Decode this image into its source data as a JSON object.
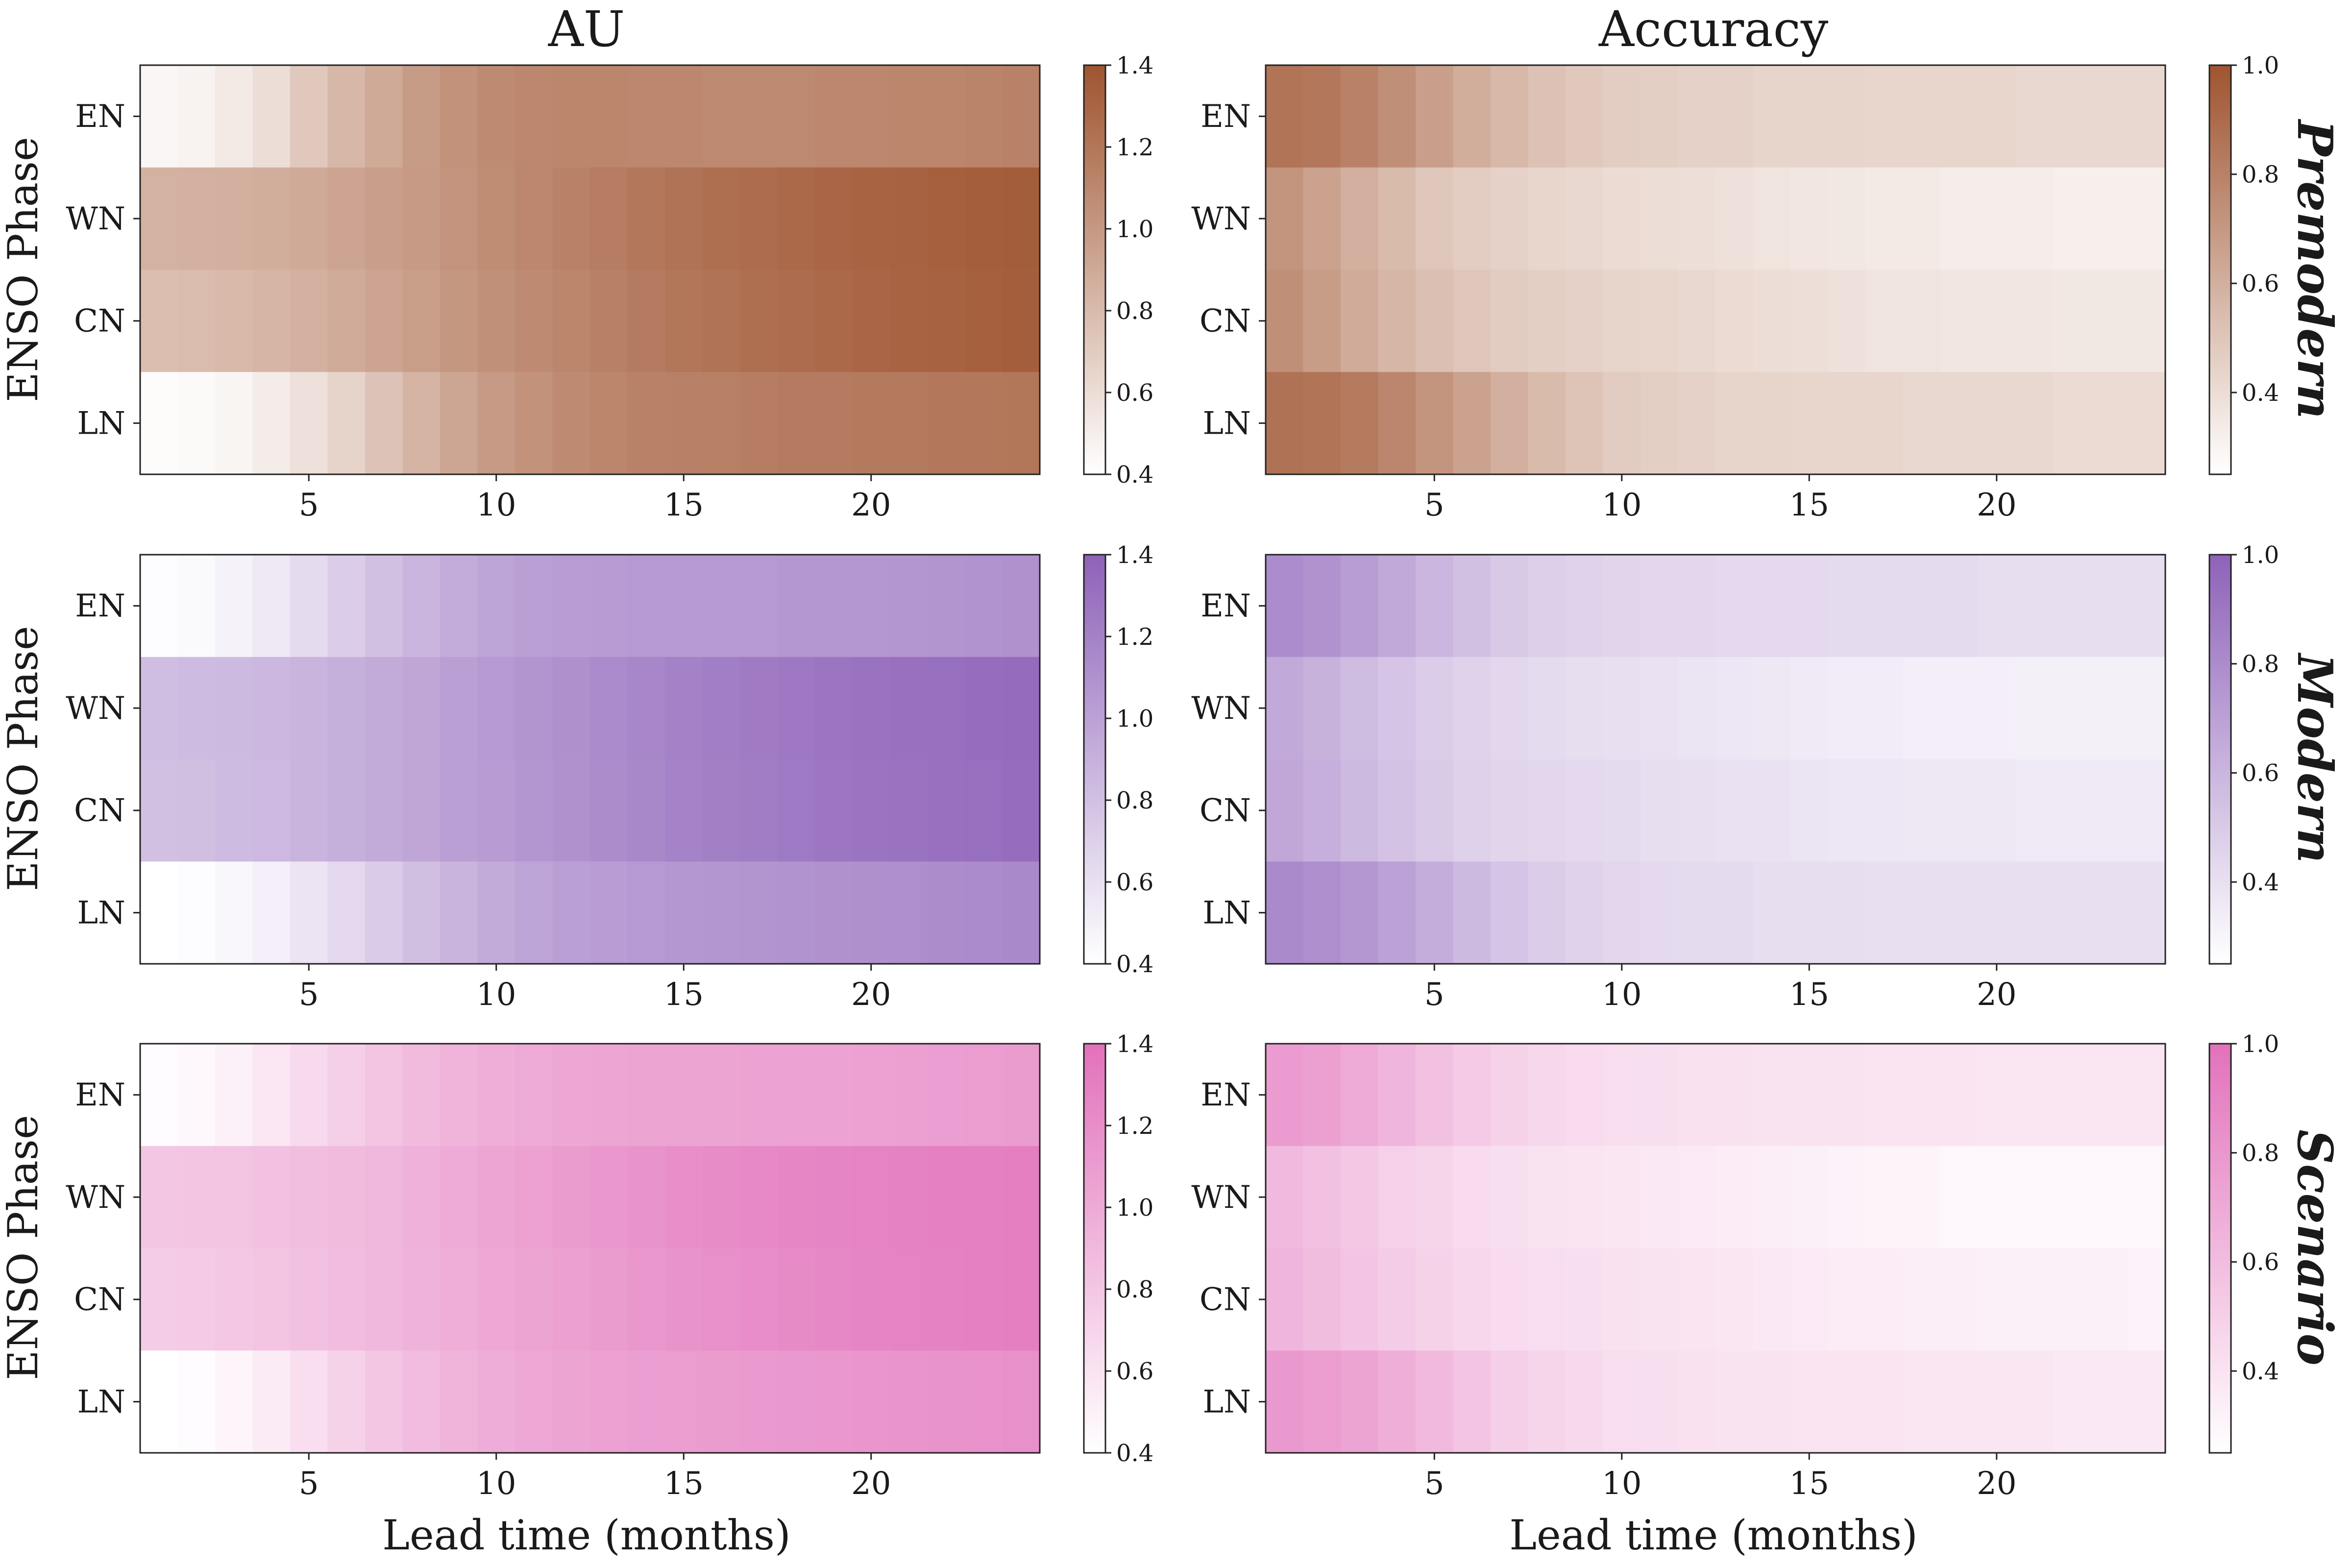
{
  "figure": {
    "col_titles": [
      "AU",
      "Accuracy"
    ],
    "ylabel": "ENSO Phase",
    "xlabel": "Lead time (months)",
    "row_labels": [
      "Premodern",
      "Modern",
      "Scenario"
    ],
    "phases": [
      "EN",
      "WN",
      "CN",
      "LN"
    ],
    "x_ticks": [
      5,
      10,
      15,
      20
    ],
    "au_cbar_ticks": [
      "0.4",
      "0.6",
      "0.8",
      "1.0",
      "1.2",
      "1.4"
    ],
    "acc_cbar_ticks": [
      "0.4",
      "0.6",
      "0.8",
      "1.0"
    ],
    "colors": {
      "premodern": "#9f5430",
      "modern": "#8e62b9",
      "scenario": "#e271bb"
    }
  },
  "chart_data": [
    {
      "type": "heatmap",
      "title": "AU",
      "row_label": "Premodern",
      "metric": "AU",
      "xlabel": "Lead time (months)",
      "ylabel": "ENSO Phase",
      "x": [
        1,
        2,
        3,
        4,
        5,
        6,
        7,
        8,
        9,
        10,
        11,
        12,
        13,
        14,
        15,
        16,
        17,
        18,
        19,
        20,
        21,
        22,
        23,
        24
      ],
      "rows": [
        "EN",
        "WN",
        "CN",
        "LN"
      ],
      "vmin": 0.4,
      "vmax": 1.4,
      "color": "#9f5430",
      "values": {
        "EN": [
          0.45,
          0.47,
          0.52,
          0.6,
          0.72,
          0.82,
          0.9,
          0.98,
          1.04,
          1.08,
          1.1,
          1.11,
          1.11,
          1.1,
          1.1,
          1.09,
          1.09,
          1.09,
          1.1,
          1.1,
          1.11,
          1.11,
          1.12,
          1.13
        ],
        "WN": [
          0.85,
          0.86,
          0.87,
          0.88,
          0.9,
          0.93,
          0.96,
          0.99,
          1.03,
          1.07,
          1.1,
          1.13,
          1.16,
          1.19,
          1.22,
          1.24,
          1.26,
          1.28,
          1.3,
          1.31,
          1.32,
          1.33,
          1.34,
          1.35
        ],
        "CN": [
          0.78,
          0.79,
          0.81,
          0.83,
          0.86,
          0.89,
          0.93,
          0.97,
          1.01,
          1.05,
          1.08,
          1.11,
          1.14,
          1.17,
          1.2,
          1.22,
          1.24,
          1.26,
          1.28,
          1.3,
          1.31,
          1.32,
          1.33,
          1.34
        ],
        "LN": [
          0.42,
          0.43,
          0.46,
          0.51,
          0.58,
          0.66,
          0.75,
          0.84,
          0.92,
          0.99,
          1.04,
          1.08,
          1.11,
          1.13,
          1.14,
          1.15,
          1.16,
          1.17,
          1.17,
          1.18,
          1.18,
          1.19,
          1.19,
          1.2
        ]
      }
    },
    {
      "type": "heatmap",
      "title": "Accuracy",
      "row_label": "Premodern",
      "metric": "Accuracy",
      "xlabel": "Lead time (months)",
      "ylabel": "ENSO Phase",
      "x": [
        1,
        2,
        3,
        4,
        5,
        6,
        7,
        8,
        9,
        10,
        11,
        12,
        13,
        14,
        15,
        16,
        17,
        18,
        19,
        20,
        21,
        22,
        23,
        24
      ],
      "rows": [
        "EN",
        "WN",
        "CN",
        "LN"
      ],
      "vmin": 0.25,
      "vmax": 1.0,
      "color": "#9f5430",
      "values": {
        "EN": [
          0.86,
          0.84,
          0.8,
          0.74,
          0.67,
          0.61,
          0.56,
          0.52,
          0.49,
          0.47,
          0.46,
          0.45,
          0.45,
          0.44,
          0.44,
          0.44,
          0.43,
          0.43,
          0.43,
          0.43,
          0.42,
          0.42,
          0.42,
          0.42
        ],
        "WN": [
          0.72,
          0.66,
          0.6,
          0.55,
          0.5,
          0.47,
          0.45,
          0.43,
          0.42,
          0.41,
          0.4,
          0.39,
          0.38,
          0.37,
          0.36,
          0.35,
          0.34,
          0.34,
          0.33,
          0.33,
          0.33,
          0.32,
          0.32,
          0.32
        ],
        "CN": [
          0.74,
          0.68,
          0.62,
          0.57,
          0.53,
          0.5,
          0.48,
          0.46,
          0.45,
          0.44,
          0.43,
          0.42,
          0.41,
          0.4,
          0.39,
          0.38,
          0.37,
          0.37,
          0.36,
          0.36,
          0.36,
          0.35,
          0.35,
          0.35
        ],
        "LN": [
          0.87,
          0.86,
          0.83,
          0.78,
          0.72,
          0.66,
          0.6,
          0.55,
          0.51,
          0.48,
          0.46,
          0.45,
          0.44,
          0.44,
          0.43,
          0.43,
          0.43,
          0.42,
          0.42,
          0.42,
          0.42,
          0.41,
          0.41,
          0.41
        ]
      }
    },
    {
      "type": "heatmap",
      "title": "AU",
      "row_label": "Modern",
      "metric": "AU",
      "xlabel": "Lead time (months)",
      "ylabel": "ENSO Phase",
      "x": [
        1,
        2,
        3,
        4,
        5,
        6,
        7,
        8,
        9,
        10,
        11,
        12,
        13,
        14,
        15,
        16,
        17,
        18,
        19,
        20,
        21,
        22,
        23,
        24
      ],
      "rows": [
        "EN",
        "WN",
        "CN",
        "LN"
      ],
      "vmin": 0.4,
      "vmax": 1.4,
      "color": "#8e62b9",
      "values": {
        "EN": [
          0.42,
          0.44,
          0.48,
          0.54,
          0.63,
          0.72,
          0.8,
          0.87,
          0.93,
          0.98,
          1.01,
          1.03,
          1.04,
          1.05,
          1.05,
          1.05,
          1.05,
          1.06,
          1.06,
          1.06,
          1.07,
          1.08,
          1.09,
          1.1
        ],
        "WN": [
          0.82,
          0.83,
          0.84,
          0.86,
          0.88,
          0.91,
          0.94,
          0.97,
          1.01,
          1.05,
          1.08,
          1.11,
          1.14,
          1.17,
          1.2,
          1.22,
          1.24,
          1.26,
          1.28,
          1.3,
          1.31,
          1.32,
          1.33,
          1.34
        ],
        "CN": [
          0.8,
          0.81,
          0.83,
          0.85,
          0.88,
          0.91,
          0.94,
          0.97,
          1.01,
          1.04,
          1.07,
          1.1,
          1.13,
          1.16,
          1.19,
          1.21,
          1.23,
          1.25,
          1.27,
          1.29,
          1.3,
          1.31,
          1.32,
          1.33
        ],
        "LN": [
          0.4,
          0.42,
          0.45,
          0.5,
          0.57,
          0.65,
          0.73,
          0.81,
          0.88,
          0.94,
          0.98,
          1.01,
          1.03,
          1.05,
          1.06,
          1.07,
          1.08,
          1.09,
          1.1,
          1.11,
          1.12,
          1.13,
          1.14,
          1.15
        ]
      }
    },
    {
      "type": "heatmap",
      "title": "Accuracy",
      "row_label": "Modern",
      "metric": "Accuracy",
      "xlabel": "Lead time (months)",
      "ylabel": "ENSO Phase",
      "x": [
        1,
        2,
        3,
        4,
        5,
        6,
        7,
        8,
        9,
        10,
        11,
        12,
        13,
        14,
        15,
        16,
        17,
        18,
        19,
        20,
        21,
        22,
        23,
        24
      ],
      "rows": [
        "EN",
        "WN",
        "CN",
        "LN"
      ],
      "vmin": 0.25,
      "vmax": 1.0,
      "color": "#8e62b9",
      "values": {
        "EN": [
          0.8,
          0.77,
          0.72,
          0.66,
          0.6,
          0.55,
          0.51,
          0.48,
          0.46,
          0.45,
          0.44,
          0.44,
          0.43,
          0.43,
          0.43,
          0.42,
          0.42,
          0.42,
          0.42,
          0.41,
          0.41,
          0.41,
          0.41,
          0.41
        ],
        "WN": [
          0.66,
          0.62,
          0.57,
          0.53,
          0.49,
          0.46,
          0.44,
          0.42,
          0.41,
          0.4,
          0.39,
          0.38,
          0.37,
          0.36,
          0.35,
          0.34,
          0.34,
          0.33,
          0.33,
          0.33,
          0.32,
          0.32,
          0.32,
          0.32
        ],
        "CN": [
          0.67,
          0.63,
          0.58,
          0.54,
          0.5,
          0.47,
          0.45,
          0.44,
          0.43,
          0.42,
          0.41,
          0.4,
          0.39,
          0.39,
          0.38,
          0.37,
          0.37,
          0.36,
          0.36,
          0.36,
          0.35,
          0.35,
          0.35,
          0.35
        ],
        "LN": [
          0.81,
          0.79,
          0.75,
          0.7,
          0.64,
          0.58,
          0.53,
          0.49,
          0.46,
          0.44,
          0.43,
          0.42,
          0.42,
          0.41,
          0.41,
          0.41,
          0.4,
          0.4,
          0.4,
          0.4,
          0.4,
          0.4,
          0.4,
          0.4
        ]
      }
    },
    {
      "type": "heatmap",
      "title": "AU",
      "row_label": "Scenario",
      "metric": "AU",
      "xlabel": "Lead time (months)",
      "ylabel": "ENSO Phase",
      "x": [
        1,
        2,
        3,
        4,
        5,
        6,
        7,
        8,
        9,
        10,
        11,
        12,
        13,
        14,
        15,
        16,
        17,
        18,
        19,
        20,
        21,
        22,
        23,
        24
      ],
      "rows": [
        "EN",
        "WN",
        "CN",
        "LN"
      ],
      "vmin": 0.4,
      "vmax": 1.4,
      "color": "#e271bb",
      "values": {
        "EN": [
          0.42,
          0.45,
          0.5,
          0.57,
          0.66,
          0.74,
          0.82,
          0.88,
          0.93,
          0.97,
          1.0,
          1.02,
          1.03,
          1.04,
          1.04,
          1.04,
          1.05,
          1.05,
          1.05,
          1.06,
          1.07,
          1.08,
          1.09,
          1.1
        ],
        "WN": [
          0.8,
          0.81,
          0.82,
          0.84,
          0.86,
          0.88,
          0.91,
          0.95,
          0.99,
          1.03,
          1.06,
          1.1,
          1.13,
          1.16,
          1.19,
          1.21,
          1.23,
          1.25,
          1.26,
          1.27,
          1.28,
          1.29,
          1.29,
          1.3
        ],
        "CN": [
          0.76,
          0.77,
          0.79,
          0.81,
          0.84,
          0.87,
          0.9,
          0.94,
          0.97,
          1.01,
          1.04,
          1.07,
          1.1,
          1.13,
          1.16,
          1.18,
          1.2,
          1.22,
          1.24,
          1.26,
          1.27,
          1.28,
          1.29,
          1.3
        ],
        "LN": [
          0.4,
          0.42,
          0.47,
          0.54,
          0.63,
          0.72,
          0.8,
          0.87,
          0.93,
          0.98,
          1.01,
          1.04,
          1.06,
          1.08,
          1.09,
          1.1,
          1.11,
          1.12,
          1.13,
          1.14,
          1.15,
          1.16,
          1.17,
          1.18
        ]
      }
    },
    {
      "type": "heatmap",
      "title": "Accuracy",
      "row_label": "Scenario",
      "metric": "Accuracy",
      "xlabel": "Lead time (months)",
      "ylabel": "ENSO Phase",
      "x": [
        1,
        2,
        3,
        4,
        5,
        6,
        7,
        8,
        9,
        10,
        11,
        12,
        13,
        14,
        15,
        16,
        17,
        18,
        19,
        20,
        21,
        22,
        23,
        24
      ],
      "rows": [
        "EN",
        "WN",
        "CN",
        "LN"
      ],
      "vmin": 0.25,
      "vmax": 1.0,
      "color": "#e271bb",
      "values": {
        "EN": [
          0.78,
          0.75,
          0.7,
          0.64,
          0.58,
          0.53,
          0.49,
          0.46,
          0.44,
          0.43,
          0.42,
          0.41,
          0.41,
          0.4,
          0.4,
          0.4,
          0.39,
          0.39,
          0.39,
          0.38,
          0.38,
          0.38,
          0.38,
          0.38
        ],
        "WN": [
          0.62,
          0.58,
          0.54,
          0.5,
          0.47,
          0.44,
          0.42,
          0.4,
          0.39,
          0.38,
          0.37,
          0.36,
          0.35,
          0.34,
          0.33,
          0.32,
          0.31,
          0.31,
          0.3,
          0.3,
          0.3,
          0.3,
          0.29,
          0.29
        ],
        "CN": [
          0.64,
          0.6,
          0.56,
          0.52,
          0.49,
          0.46,
          0.44,
          0.43,
          0.42,
          0.41,
          0.4,
          0.39,
          0.38,
          0.37,
          0.36,
          0.35,
          0.35,
          0.34,
          0.34,
          0.33,
          0.33,
          0.33,
          0.33,
          0.32
        ],
        "LN": [
          0.79,
          0.77,
          0.73,
          0.68,
          0.62,
          0.56,
          0.51,
          0.47,
          0.45,
          0.43,
          0.42,
          0.41,
          0.4,
          0.4,
          0.39,
          0.39,
          0.39,
          0.38,
          0.38,
          0.38,
          0.38,
          0.37,
          0.37,
          0.37
        ]
      }
    }
  ]
}
